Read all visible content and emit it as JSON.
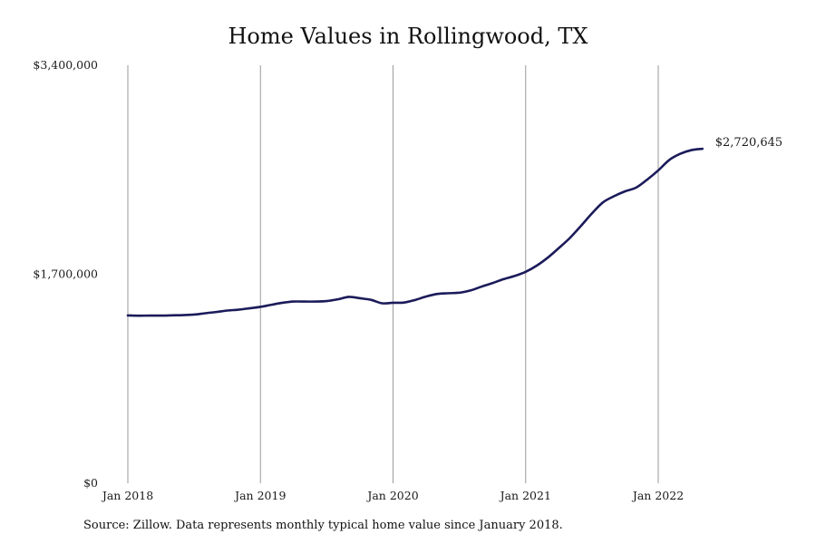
{
  "chart_data": {
    "type": "line",
    "title": "Home Values in Rollingwood, TX",
    "xlabel": "",
    "ylabel": "",
    "ylim": [
      0,
      3400000
    ],
    "yticks": [
      0,
      1700000,
      3400000
    ],
    "ytick_labels": [
      "$0",
      "$1,700,000",
      "$3,400,000"
    ],
    "xlim": [
      "2017-12",
      "2022-05"
    ],
    "xticks": [
      "2018-01",
      "2019-01",
      "2020-01",
      "2021-01",
      "2022-01"
    ],
    "xtick_labels": [
      "Jan 2018",
      "Jan 2019",
      "Jan 2020",
      "Jan 2021",
      "Jan 2022"
    ],
    "grid": "vertical",
    "line_color": "#1b1b5a",
    "end_label": "$2,720,645",
    "x": [
      "2018-01",
      "2018-02",
      "2018-03",
      "2018-04",
      "2018-05",
      "2018-06",
      "2018-07",
      "2018-08",
      "2018-09",
      "2018-10",
      "2018-11",
      "2018-12",
      "2019-01",
      "2019-02",
      "2019-03",
      "2019-04",
      "2019-05",
      "2019-06",
      "2019-07",
      "2019-08",
      "2019-09",
      "2019-10",
      "2019-11",
      "2019-12",
      "2020-01",
      "2020-02",
      "2020-03",
      "2020-04",
      "2020-05",
      "2020-06",
      "2020-07",
      "2020-08",
      "2020-09",
      "2020-10",
      "2020-11",
      "2020-12",
      "2021-01",
      "2021-02",
      "2021-03",
      "2021-04",
      "2021-05",
      "2021-06",
      "2021-07",
      "2021-08",
      "2021-09",
      "2021-10",
      "2021-11",
      "2021-12",
      "2022-01",
      "2022-02",
      "2022-03",
      "2022-04",
      "2022-05"
    ],
    "values": [
      1365000,
      1363000,
      1364000,
      1364000,
      1366000,
      1368000,
      1372000,
      1383000,
      1393000,
      1405000,
      1412000,
      1423000,
      1435000,
      1452000,
      1468000,
      1478000,
      1478000,
      1478000,
      1482000,
      1496000,
      1516000,
      1505000,
      1492000,
      1464000,
      1468000,
      1470000,
      1491000,
      1519000,
      1540000,
      1546000,
      1550000,
      1568000,
      1599000,
      1628000,
      1660000,
      1686000,
      1720000,
      1770000,
      1835000,
      1913000,
      1995000,
      2093000,
      2195000,
      2285000,
      2335000,
      2375000,
      2405000,
      2470000,
      2545000,
      2630000,
      2680000,
      2710000,
      2720645
    ]
  },
  "footer": {
    "source": "Source: Zillow. Data represents monthly typical home value since January 2018."
  }
}
